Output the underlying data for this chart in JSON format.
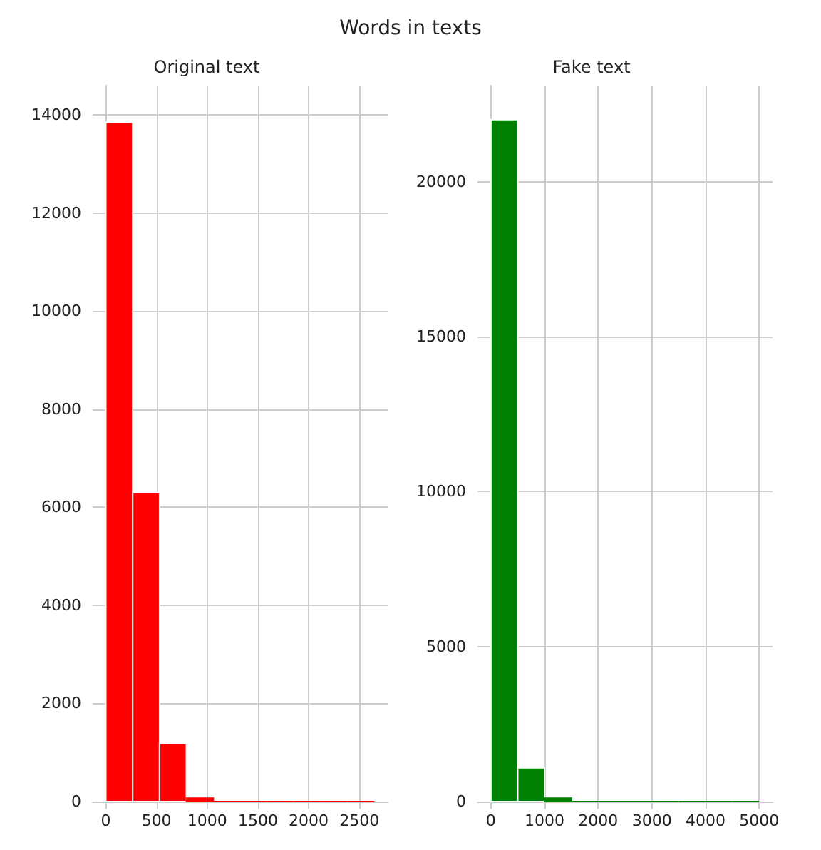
{
  "chart_data": [
    {
      "type": "histogram",
      "title": "Original text",
      "annotations": [
        "Words in texts"
      ],
      "bins": [
        0,
        265,
        530,
        795,
        1060,
        1325,
        1590,
        1855,
        2120,
        2385,
        2650
      ],
      "values": [
        13850,
        6300,
        1180,
        70,
        0,
        0,
        0,
        0,
        0,
        0
      ],
      "color": "#ff0000",
      "xlim": [
        -130,
        2780
      ],
      "xticks": [
        0,
        500,
        1000,
        1500,
        2000,
        2500
      ],
      "ylim": [
        0,
        14600
      ],
      "yticks": [
        0,
        2000,
        4000,
        6000,
        8000,
        10000,
        12000,
        14000
      ],
      "grid": true
    },
    {
      "type": "histogram",
      "title": "Fake text",
      "bins": [
        0,
        500,
        1000,
        1500,
        2000,
        2500,
        3000,
        3500,
        4000,
        4500,
        5000
      ],
      "values": [
        22000,
        1090,
        110,
        0,
        0,
        0,
        0,
        0,
        0,
        0
      ],
      "color": "#008000",
      "xlim": [
        -250,
        5250
      ],
      "xticks": [
        0,
        1000,
        2000,
        3000,
        4000,
        5000
      ],
      "ylim": [
        0,
        23100
      ],
      "yticks": [
        0,
        5000,
        10000,
        15000,
        20000
      ],
      "grid": true
    }
  ]
}
